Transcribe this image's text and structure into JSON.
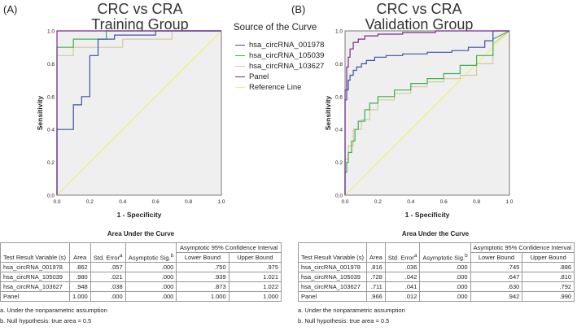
{
  "panels": {
    "A": {
      "letter": "(A)",
      "title1": "CRC vs CRA",
      "title2": "Training Group"
    },
    "B": {
      "letter": "(B)",
      "title1": "CRC vs CRA",
      "title2": "Validation Group"
    }
  },
  "legend": {
    "title": "Source of the Curve",
    "items": [
      {
        "label": "hsa_circRNA_001978",
        "color": "#3a53a8"
      },
      {
        "label": "hsa_circRNA_105039",
        "color": "#3bb34a"
      },
      {
        "label": "hsa_circRNA_103627",
        "color": "#d6c8a4"
      },
      {
        "label": "Panel",
        "color": "#7b2b8e"
      },
      {
        "label": "Reference Line",
        "color": "#f2ee7a"
      }
    ]
  },
  "chart_data": [
    {
      "type": "line",
      "title": "CRC vs CRA Training Group",
      "xlabel": "1 - Specificity",
      "ylabel": "Sensitivity",
      "xlim": [
        0,
        1
      ],
      "ylim": [
        0,
        1
      ],
      "ticks": [
        "0.0",
        "0.2",
        "0.4",
        "0.6",
        "0.8",
        "1.0"
      ],
      "series": [
        {
          "name": "hsa_circRNA_001978",
          "color": "#3a53a8",
          "x": [
            0,
            0,
            0.1,
            0.1,
            0.15,
            0.15,
            0.2,
            0.2,
            0.25,
            0.25,
            0.35,
            0.35,
            0.6,
            0.6,
            1
          ],
          "y": [
            0,
            0.4,
            0.4,
            0.55,
            0.55,
            0.6,
            0.6,
            0.85,
            0.85,
            0.95,
            0.95,
            0.975,
            0.975,
            1,
            1
          ]
        },
        {
          "name": "hsa_circRNA_105039",
          "color": "#3bb34a",
          "x": [
            0,
            0,
            0.1,
            0.1,
            0.3,
            0.3,
            1
          ],
          "y": [
            0,
            0.9,
            0.9,
            0.95,
            0.95,
            1,
            1
          ]
        },
        {
          "name": "hsa_circRNA_103627",
          "color": "#d6c8a4",
          "x": [
            0,
            0,
            0.1,
            0.1,
            0.4,
            0.4,
            0.7,
            0.7,
            1
          ],
          "y": [
            0,
            0.85,
            0.85,
            0.9,
            0.9,
            0.95,
            0.95,
            1,
            1
          ]
        },
        {
          "name": "Panel",
          "color": "#7b2b8e",
          "x": [
            0,
            0,
            1
          ],
          "y": [
            0,
            1,
            1
          ]
        },
        {
          "name": "Reference Line",
          "color": "#f2ee7a",
          "x": [
            0,
            1
          ],
          "y": [
            0,
            1
          ]
        }
      ]
    },
    {
      "type": "line",
      "title": "CRC vs CRA Validation Group",
      "xlabel": "1 - Specificity",
      "ylabel": "Sensitivity",
      "xlim": [
        0,
        1
      ],
      "ylim": [
        0,
        1
      ],
      "ticks": [
        "0.0",
        "0.2",
        "0.4",
        "0.6",
        "0.8",
        "1.0"
      ],
      "series": [
        {
          "name": "hsa_circRNA_001978",
          "color": "#3a53a8",
          "x": [
            0,
            0,
            0.01,
            0.01,
            0.02,
            0.02,
            0.03,
            0.03,
            0.05,
            0.05,
            0.07,
            0.07,
            0.1,
            0.1,
            0.13,
            0.13,
            0.18,
            0.18,
            0.25,
            0.25,
            0.35,
            0.35,
            0.5,
            0.5,
            0.65,
            0.65,
            0.75,
            0.75,
            0.85,
            0.85,
            0.9,
            0.9,
            1
          ],
          "y": [
            0,
            0.58,
            0.58,
            0.64,
            0.64,
            0.7,
            0.7,
            0.73,
            0.73,
            0.76,
            0.76,
            0.78,
            0.78,
            0.8,
            0.8,
            0.82,
            0.82,
            0.84,
            0.84,
            0.85,
            0.85,
            0.86,
            0.86,
            0.87,
            0.87,
            0.88,
            0.88,
            0.9,
            0.9,
            0.94,
            0.94,
            1,
            1
          ]
        },
        {
          "name": "hsa_circRNA_105039",
          "color": "#3bb34a",
          "x": [
            0,
            0,
            0.01,
            0.01,
            0.02,
            0.02,
            0.04,
            0.04,
            0.06,
            0.06,
            0.08,
            0.08,
            0.12,
            0.12,
            0.15,
            0.15,
            0.2,
            0.2,
            0.3,
            0.3,
            0.4,
            0.4,
            0.5,
            0.5,
            0.6,
            0.6,
            0.7,
            0.7,
            0.8,
            0.8,
            0.9,
            0.9,
            1
          ],
          "y": [
            0,
            0.14,
            0.14,
            0.2,
            0.2,
            0.26,
            0.26,
            0.33,
            0.33,
            0.4,
            0.4,
            0.45,
            0.45,
            0.52,
            0.52,
            0.56,
            0.56,
            0.6,
            0.6,
            0.64,
            0.64,
            0.68,
            0.68,
            0.71,
            0.71,
            0.74,
            0.74,
            0.79,
            0.79,
            0.85,
            0.85,
            0.95,
            1
          ]
        },
        {
          "name": "hsa_circRNA_103627",
          "color": "#d6c8a4",
          "x": [
            0,
            0,
            0.02,
            0.02,
            0.05,
            0.05,
            0.1,
            0.1,
            0.15,
            0.15,
            0.2,
            0.2,
            0.3,
            0.3,
            0.4,
            0.4,
            0.5,
            0.5,
            0.6,
            0.6,
            0.7,
            0.7,
            0.8,
            0.8,
            0.9,
            0.9,
            1
          ],
          "y": [
            0,
            0.22,
            0.22,
            0.3,
            0.3,
            0.4,
            0.4,
            0.46,
            0.46,
            0.52,
            0.52,
            0.58,
            0.58,
            0.62,
            0.62,
            0.66,
            0.66,
            0.69,
            0.69,
            0.71,
            0.71,
            0.73,
            0.73,
            0.8,
            0.8,
            0.92,
            1
          ]
        },
        {
          "name": "Panel",
          "color": "#7b2b8e",
          "x": [
            0,
            0,
            0.01,
            0.01,
            0.02,
            0.02,
            0.03,
            0.03,
            0.05,
            0.05,
            0.08,
            0.08,
            0.12,
            0.12,
            0.2,
            0.2,
            0.35,
            0.35,
            0.55,
            0.55,
            1
          ],
          "y": [
            0,
            0.64,
            0.64,
            0.78,
            0.78,
            0.84,
            0.84,
            0.89,
            0.89,
            0.93,
            0.93,
            0.95,
            0.95,
            0.97,
            0.97,
            0.98,
            0.98,
            0.99,
            0.99,
            1,
            1
          ]
        },
        {
          "name": "Reference Line",
          "color": "#f2ee7a",
          "x": [
            0,
            1
          ],
          "y": [
            0,
            1
          ]
        }
      ]
    }
  ],
  "tables": {
    "A": {
      "title": "Area Under the Curve",
      "headers": {
        "var": "Test Result Variable (s)",
        "area": "Area",
        "se": "Std. Error",
        "se_sup": "a",
        "sig": "Asymptotic Sig.",
        "sig_sup": "b",
        "ci": "Asymptotic 95% Confidence Interval",
        "lb": "Lower Bound",
        "ub": "Upper Bound"
      },
      "rows": [
        {
          "var": "hsa_circRNA_001978",
          "area": ".862",
          "se": ".057",
          "sig": ".000",
          "lb": ".750",
          "ub": ".975"
        },
        {
          "var": "hsa_circRNA_105039",
          "area": ".980",
          "se": ".021",
          "sig": ".000",
          "lb": ".939",
          "ub": "1.021"
        },
        {
          "var": "hsa_circRNA_103627",
          "area": ".948",
          "se": ".038",
          "sig": ".000",
          "lb": ".873",
          "ub": "1.022"
        },
        {
          "var": "Panel",
          "area": "1.000",
          "se": ".000",
          "sig": ".000",
          "lb": "1.000",
          "ub": "1.000"
        }
      ],
      "note_a": "a. Under the nonparametric assumption",
      "note_b": "b. Null hypothesis: true area = 0.5"
    },
    "B": {
      "title": "Area Under the Curve",
      "headers": {
        "var": "Test Result Variable (s)",
        "area": "Area",
        "se": "Std. Error",
        "se_sup": "a",
        "sig": "Asymptotic Sig.",
        "sig_sup": "b",
        "ci": "Asymptotic 95% Confidence Interval",
        "lb": "Lower Bound",
        "ub": "Upper Bound"
      },
      "rows": [
        {
          "var": "hsa_circRNA_001978",
          "area": ".816",
          "se": ".036",
          "sig": ".000",
          "lb": ".745",
          "ub": ".886"
        },
        {
          "var": "hsa_circRNA_105039",
          "area": ".728",
          "se": ".042",
          "sig": ".000",
          "lb": ".647",
          "ub": ".810"
        },
        {
          "var": "hsa_circRNA_103627",
          "area": ".711",
          "se": ".041",
          "sig": ".000",
          "lb": ".630",
          "ub": ".792"
        },
        {
          "var": "Panel",
          "area": ".966",
          "se": ".012",
          "sig": ".000",
          "lb": ".942",
          "ub": ".990"
        }
      ],
      "note_a": "a. Under the nonparametric assumption",
      "note_b": "b. Null hypothesis: true area = 0.5"
    }
  }
}
